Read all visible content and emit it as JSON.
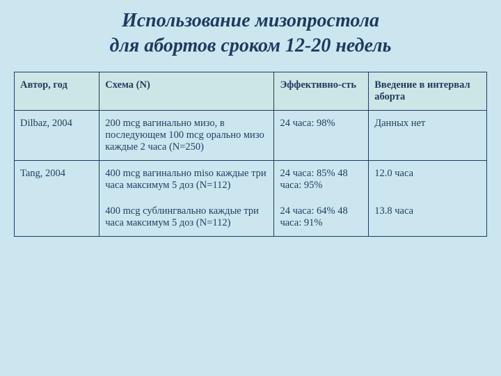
{
  "title_line1": "Использование мизопростола",
  "title_line2": "для абортов сроком 12-20 недель",
  "table": {
    "headers": {
      "author": "Автор, год",
      "scheme": "Схема (N)",
      "effectiveness": "Эффективно-сть",
      "interval": "Введение в интервал аборта"
    },
    "rows": [
      {
        "author": "Dilbaz, 2004",
        "scheme": "200 mcg вагинально мизо, в последующем 100 mcg орально мизо каждые 2 часа (N=250)",
        "effectiveness": "24 часа: 98%",
        "interval": "Данных нет"
      },
      {
        "author": "Tang, 2004",
        "scheme": "400 mcg вагинально miso каждые три часа максимум 5 доз (N=112)",
        "effectiveness": "24 часа: 85% 48 часа: 95%",
        "interval": "12.0 часа"
      },
      {
        "author": "",
        "scheme": "400 mcg сублингвально каждые три часа максимум 5 доз (N=112)",
        "effectiveness": "24 часа: 64% 48 часа: 91%",
        "interval": "13.8 часа"
      }
    ],
    "header_bg": "#cce6e6",
    "border_color": "#1f3a5f",
    "text_color": "#1f3a5f",
    "slide_bg": "#cce6f0",
    "font_family": "Georgia, serif",
    "title_fontsize": 28,
    "cell_fontsize": 14.5
  }
}
